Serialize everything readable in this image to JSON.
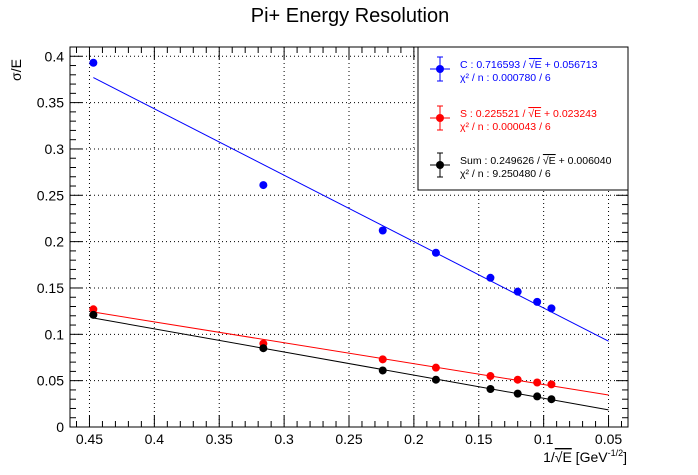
{
  "chart_data": {
    "type": "scatter",
    "title": "Pi+ Energy Resolution",
    "xlabel": "1/√E [GeV⁻¹ᐟ²]",
    "xlabel_parts": {
      "prefix": "1/",
      "sqrt": "E",
      "unit_open": " [GeV",
      "exp": "-1/2",
      "unit_close": "]"
    },
    "ylabel": "σ/E",
    "xlim": [
      0.465,
      0.035
    ],
    "x_reversed": true,
    "ylim": [
      0,
      0.41
    ],
    "x_ticks": [
      0.45,
      0.4,
      0.35,
      0.3,
      0.25,
      0.2,
      0.15,
      0.1,
      0.05
    ],
    "x_tick_labels": [
      "0.45",
      "0.4",
      "0.35",
      "0.3",
      "0.25",
      "0.2",
      "0.15",
      "0.1",
      "0.05"
    ],
    "y_ticks": [
      0,
      0.05,
      0.1,
      0.15,
      0.2,
      0.25,
      0.3,
      0.35,
      0.4
    ],
    "y_tick_labels": [
      "0",
      "0.05",
      "0.1",
      "0.15",
      "0.2",
      "0.25",
      "0.3",
      "0.35",
      "0.4"
    ],
    "grid": true,
    "legend_position": "top-right",
    "series": [
      {
        "name": "C",
        "color": "#0000ff",
        "x": [
          0.447,
          0.316,
          0.224,
          0.183,
          0.141,
          0.12,
          0.105,
          0.094
        ],
        "y": [
          0.393,
          0.261,
          0.212,
          0.188,
          0.161,
          0.146,
          0.135,
          0.128
        ],
        "fit": {
          "slope": 0.716593,
          "intercept": 0.056713
        },
        "legend_line1_prefix": "C : 0.716593 / ",
        "legend_line1_suffix": " + 0.056713",
        "legend_line2": "χ² / n : 0.000780 / 6"
      },
      {
        "name": "S",
        "color": "#ff0000",
        "x": [
          0.447,
          0.316,
          0.224,
          0.183,
          0.141,
          0.12,
          0.105,
          0.094
        ],
        "y": [
          0.127,
          0.09,
          0.073,
          0.064,
          0.055,
          0.051,
          0.048,
          0.046
        ],
        "fit": {
          "slope": 0.225521,
          "intercept": 0.023243
        },
        "legend_line1_prefix": "S : 0.225521 / ",
        "legend_line1_suffix": " + 0.023243",
        "legend_line2": "χ² / n : 0.000043 / 6"
      },
      {
        "name": "Sum",
        "color": "#000000",
        "x": [
          0.447,
          0.316,
          0.224,
          0.183,
          0.141,
          0.12,
          0.105,
          0.094
        ],
        "y": [
          0.121,
          0.085,
          0.061,
          0.051,
          0.041,
          0.036,
          0.033,
          0.03
        ],
        "fit": {
          "slope": 0.249626,
          "intercept": 0.00604
        },
        "legend_line1_prefix": "Sum : 0.249626 / ",
        "legend_line1_suffix": " + 0.006040",
        "legend_line2": "χ² / n : 9.250480 / 6"
      }
    ]
  }
}
